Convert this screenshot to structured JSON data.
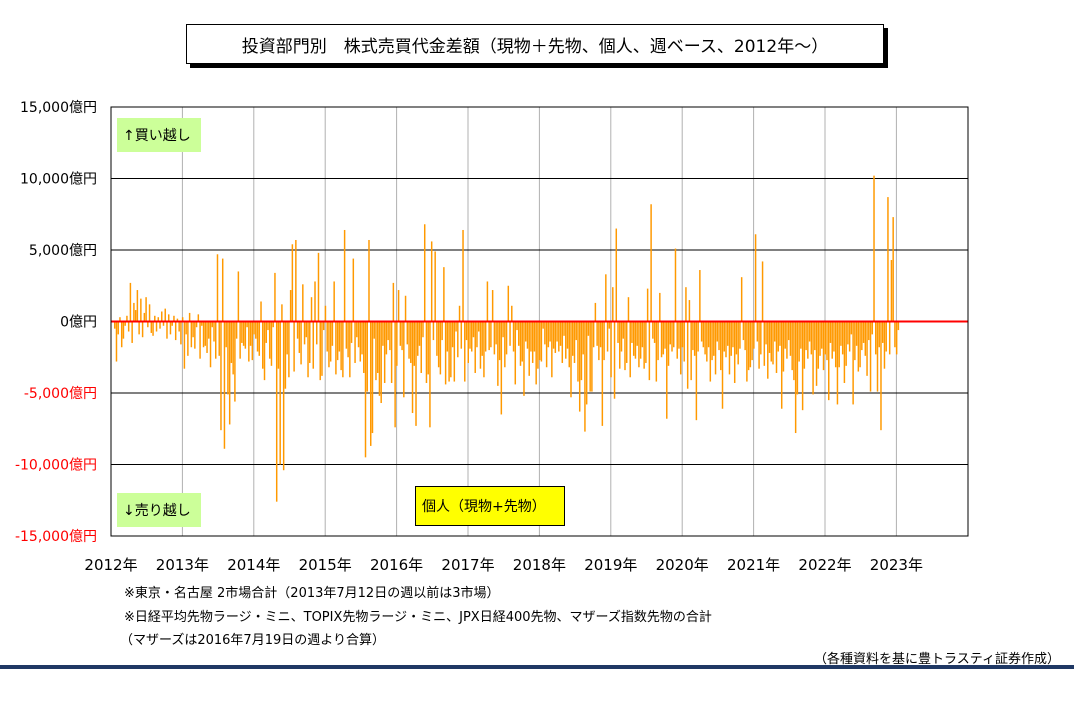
{
  "title": "投資部門別　株式売買代金差額（現物＋先物、個人、週ベース、2012年～）",
  "labels": {
    "buy": "↑買い越し",
    "sell": "↓売り越し",
    "series": "個人（現物+先物）"
  },
  "notes": [
    "※東京・名古屋 2市場合計（2013年7月12日の週以前は3市場）",
    "※日経平均先物ラージ・ミニ、TOPIX先物ラージ・ミニ、JPX日経400先物、マザーズ指数先物の合計",
    "（マザーズは2016年7月19日の週より合算）"
  ],
  "credit": "（各種資料を基に豊トラスティ証券作成）",
  "colors": {
    "bar": "#ff9900",
    "zero_line": "#ff0000",
    "negative_tick": "#ff0000",
    "grid": "#000000"
  },
  "chart_data": {
    "type": "bar",
    "title": "投資部門別　株式売買代金差額（現物＋先物、個人、週ベース、2012年～）",
    "series_name": "個人（現物+先物）",
    "ylabel": "",
    "xlabel": "",
    "ylim": [
      -15000,
      15000
    ],
    "y_ticks": [
      15000,
      10000,
      5000,
      0,
      -5000,
      -10000,
      -15000
    ],
    "y_tick_labels": [
      "15,000億円",
      "10,000億円",
      "5,000億円",
      "0億円",
      "-5,000億円",
      "-10,000億円",
      "-15,000億円"
    ],
    "x_tick_labels": [
      "2012年",
      "2013年",
      "2014年",
      "2015年",
      "2016年",
      "2017年",
      "2018年",
      "2019年",
      "2020年",
      "2021年",
      "2022年",
      "2023年"
    ],
    "grid": true,
    "frequency": "weekly",
    "start_year": 2012,
    "values": [
      -500,
      -2800,
      -900,
      300,
      -1800,
      -1200,
      -300,
      400,
      -700,
      2700,
      -1500,
      1300,
      800,
      2200,
      -900,
      1600,
      -1100,
      600,
      1700,
      -400,
      1200,
      -800,
      -1000,
      400,
      -700,
      300,
      -500,
      700,
      -300,
      900,
      -1200,
      500,
      -900,
      -300,
      400,
      -1300,
      200,
      -700,
      -1600,
      300,
      -3300,
      -900,
      -2400,
      600,
      -1800,
      -1100,
      -1900,
      -400,
      500,
      -2600,
      -300,
      -1800,
      -1700,
      -2200,
      -1200,
      -3200,
      -400,
      -1400,
      -2600,
      4700,
      -2400,
      -7600,
      4400,
      -8900,
      -1800,
      -5100,
      -7200,
      -2900,
      -3700,
      -5600,
      -1200,
      3500,
      -2600,
      -1500,
      -1700,
      -1900,
      -400,
      -2800,
      -1700,
      -2700,
      -900,
      -1200,
      -2100,
      -2400,
      1400,
      -3300,
      -4100,
      -1500,
      -600,
      -2600,
      -3100,
      -400,
      3400,
      -12600,
      -3300,
      -10000,
      1200,
      -10400,
      -4700,
      -2300,
      -3900,
      2200,
      5400,
      -3500,
      5700,
      -1200,
      -2200,
      -3000,
      2600,
      -1600,
      -1100,
      -3900,
      -2900,
      1700,
      -3300,
      2800,
      -1600,
      4800,
      -4100,
      -3800,
      -600,
      1100,
      -2100,
      -3200,
      -2800,
      -1700,
      2800,
      -3700,
      -2700,
      -2100,
      -3400,
      -3900,
      6400,
      -1900,
      -2500,
      -3900,
      -1500,
      4400,
      -2900,
      -1100,
      -1800,
      -2800,
      -2300,
      -3600,
      -9500,
      -4900,
      5700,
      -8700,
      -7800,
      -1200,
      -4100,
      -3600,
      -5200,
      -5700,
      -1700,
      -4300,
      -2300,
      -1300,
      -2000,
      -4300,
      2700,
      -7400,
      -3100,
      2200,
      -1700,
      -2000,
      -5300,
      1800,
      -1600,
      -2600,
      -2900,
      -6400,
      -3100,
      -7300,
      -2400,
      -1700,
      -3600,
      -1100,
      6800,
      -4300,
      -3700,
      -7400,
      5600,
      -1300,
      4900,
      -2400,
      -3200,
      -3700,
      -1300,
      3800,
      -4400,
      -2100,
      -4200,
      -3900,
      -1800,
      -4200,
      -700,
      -2500,
      1100,
      -1900,
      6400,
      -4200,
      -1300,
      -2900,
      -1900,
      -2100,
      -1100,
      -3600,
      -1800,
      -700,
      -3300,
      -2400,
      -3900,
      -2100,
      2800,
      -2000,
      -1800,
      2200,
      -2300,
      -1600,
      -4500,
      -2700,
      -6500,
      -1100,
      -3200,
      -2300,
      2500,
      -1700,
      1100,
      -2100,
      -4400,
      -600,
      -1700,
      -3100,
      -2800,
      -5200,
      -1400,
      -1900,
      -3800,
      -2100,
      -2900,
      -2100,
      -4400,
      -3300,
      -2700,
      -2800,
      -500,
      -1600,
      -3200,
      -1800,
      -1400,
      -3900,
      -1900,
      -2200,
      -1400,
      -2100,
      -1700,
      -2900,
      -1000,
      -2600,
      -1900,
      -3200,
      -5300,
      -2400,
      -2900,
      -1300,
      -4200,
      -6300,
      -4100,
      -2300,
      -7700,
      -5800,
      -1000,
      -4900,
      -4900,
      -1800,
      1300,
      -1700,
      -2700,
      -1800,
      -7300,
      -2700,
      3300,
      -2100,
      -500,
      -3900,
      2400,
      -5400,
      6500,
      -1500,
      -3300,
      -2100,
      -1200,
      -3400,
      -2900,
      1700,
      -3900,
      -1500,
      -2400,
      -2600,
      -1700,
      -3200,
      -2600,
      -1800,
      -3300,
      -2900,
      2300,
      -4100,
      8200,
      -1200,
      -1500,
      -4200,
      -2700,
      2000,
      -2500,
      -2300,
      -1900,
      -6800,
      -3100,
      -1600,
      -2100,
      -1800,
      5100,
      -2600,
      -1900,
      -3700,
      -1800,
      -2800,
      2400,
      -4700,
      1500,
      -4100,
      -2000,
      -2400,
      -6900,
      -2100,
      3600,
      -1400,
      -1800,
      -2300,
      -2800,
      -1800,
      -4200,
      -2700,
      -2400,
      -3700,
      -1400,
      -2000,
      -3400,
      -6100,
      -2100,
      -2500,
      -1700,
      -3700,
      -2400,
      -1800,
      -4300,
      -2300,
      -3000,
      -1900,
      3100,
      -1300,
      -2000,
      -4200,
      -3400,
      -3200,
      -2700,
      -1900,
      6100,
      -1400,
      -3300,
      -2300,
      4200,
      -3100,
      -1600,
      -4000,
      -2200,
      -2800,
      -3000,
      -1400,
      -3600,
      -2100,
      -1700,
      -6100,
      -3500,
      -1900,
      -2600,
      -1300,
      -2400,
      -3400,
      -4100,
      -7800,
      -5100,
      -2800,
      -1900,
      -6200,
      -3300,
      -2000,
      -2600,
      -1400,
      -2300,
      -5100,
      -2000,
      -4500,
      -3300,
      -2400,
      -1900,
      -3400,
      -2300,
      -2700,
      -5500,
      -1500,
      -2600,
      -2100,
      -3200,
      -5800,
      -3200,
      -1700,
      -2300,
      -4300,
      -3100,
      -1600,
      -2100,
      -900,
      -5800,
      -2700,
      -1700,
      -3500,
      -3200,
      -2000,
      -1500,
      -2400,
      -3800,
      -1300,
      -4900,
      -900,
      10200,
      -2300,
      -4900,
      -1800,
      -7600,
      -1500,
      -3300,
      -2100,
      8700,
      -2300,
      4300,
      7300,
      -1800,
      -2300,
      -600
    ]
  }
}
